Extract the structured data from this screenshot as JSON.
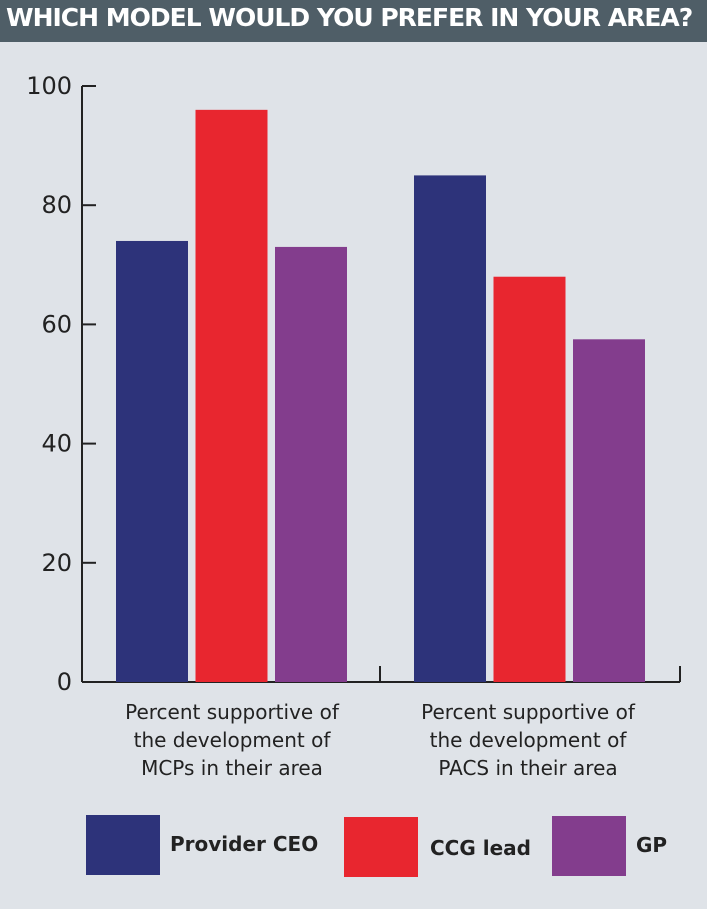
{
  "title": "WHICH MODEL WOULD YOU PREFER IN YOUR AREA?",
  "colors": {
    "title_bg": "#4f5e67",
    "background": "#dfe3e8",
    "provider_ceo": "#2d337a",
    "ccg_lead": "#e8262f",
    "gp": "#833d8d"
  },
  "chart_data": {
    "type": "bar",
    "title": "WHICH MODEL WOULD YOU PREFER IN YOUR AREA?",
    "categories": [
      [
        "Percent supportive of",
        "the development of",
        "MCPs in their area"
      ],
      [
        "Percent supportive of",
        "the development of",
        "PACS in their area"
      ]
    ],
    "series": [
      {
        "name": "Provider CEO",
        "color": "#2d337a",
        "values": [
          74,
          85
        ]
      },
      {
        "name": "CCG lead",
        "color": "#e8262f",
        "values": [
          96,
          68
        ]
      },
      {
        "name": "GP",
        "color": "#833d8d",
        "values": [
          73,
          57.5
        ]
      }
    ],
    "ylim": [
      0,
      100
    ],
    "yticks": [
      0,
      20,
      40,
      60,
      80,
      100
    ],
    "xlabel": "",
    "ylabel": "",
    "grid": false,
    "legend": "bottom"
  }
}
